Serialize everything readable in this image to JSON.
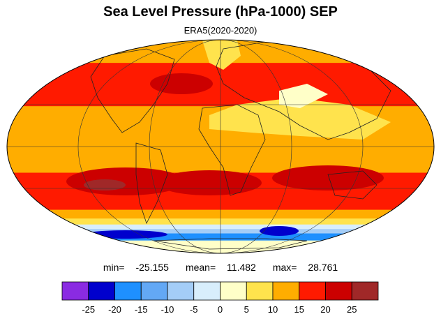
{
  "title": "Sea Level Pressure (hPa-1000) SEP",
  "subtitle": "ERA5(2020-2020)",
  "stats": {
    "min_label": "min=",
    "min": "-25.155",
    "mean_label": "mean=",
    "mean": "11.482",
    "max_label": "max=",
    "max": "28.761"
  },
  "colorbar": {
    "colors": [
      "#8a2be2",
      "#0000cd",
      "#1e90ff",
      "#63a8f5",
      "#a4cdf7",
      "#d8eefc",
      "#ffffc8",
      "#ffe34d",
      "#ffad00",
      "#ff1a00",
      "#cc0000",
      "#a02828"
    ],
    "tick_labels": [
      "-25",
      "-20",
      "-15",
      "-10",
      "-5",
      "0",
      "5",
      "10",
      "15",
      "20",
      "25"
    ]
  },
  "map": {
    "projection": "Mollweide",
    "bands": [
      {
        "lat_top": 90,
        "lat_bottom": 62,
        "color": "#ffad00"
      },
      {
        "lat_top": 62,
        "lat_bottom": 38,
        "color": "#ff1a00"
      },
      {
        "lat_top": 38,
        "lat_bottom": 28,
        "color": "#ff1a00"
      },
      {
        "lat_top": 28,
        "lat_bottom": 8,
        "color": "#ffad00"
      },
      {
        "lat_top": 8,
        "lat_bottom": -18,
        "color": "#ffad00"
      },
      {
        "lat_top": -18,
        "lat_bottom": -45,
        "color": "#ff1a00"
      },
      {
        "lat_top": -45,
        "lat_bottom": -52,
        "color": "#ffad00"
      },
      {
        "lat_top": -52,
        "lat_bottom": -57,
        "color": "#ffe34d"
      },
      {
        "lat_top": -57,
        "lat_bottom": -61,
        "color": "#d8eefc"
      },
      {
        "lat_top": -61,
        "lat_bottom": -65,
        "color": "#a4cdf7"
      },
      {
        "lat_top": -65,
        "lat_bottom": -72,
        "color": "#1e90ff"
      },
      {
        "lat_top": -72,
        "lat_bottom": -90,
        "color": "#ffffc8"
      }
    ]
  }
}
